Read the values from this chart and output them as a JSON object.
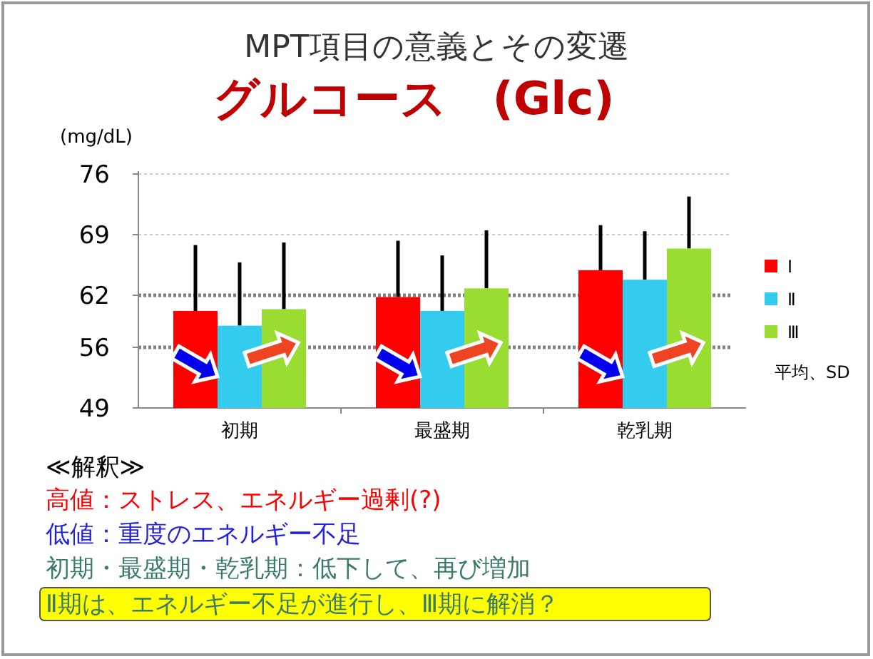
{
  "chart_data": {
    "type": "bar",
    "title": "MPT項目の意義とその変遷",
    "subtitle": "グルコース　(Glc)",
    "ylabel": "(mg/dL)",
    "categories": [
      "初期",
      "最盛期",
      "乾乳期"
    ],
    "series": [
      {
        "name": "Ⅰ",
        "color": "#ff0000",
        "values": [
          60.2,
          61.8,
          64.9
        ],
        "errors": [
          [
            60.2,
            67.8
          ],
          [
            61.8,
            68.3
          ],
          [
            64.9,
            70.1
          ]
        ]
      },
      {
        "name": "Ⅱ",
        "color": "#33ccee",
        "values": [
          58.5,
          60.2,
          63.8
        ],
        "errors": [
          [
            58.5,
            65.8
          ],
          [
            60.2,
            66.6
          ],
          [
            63.8,
            69.4
          ]
        ]
      },
      {
        "name": "Ⅲ",
        "color": "#99dd33",
        "values": [
          60.4,
          62.8,
          67.4
        ],
        "errors": [
          [
            60.4,
            68.1
          ],
          [
            62.8,
            69.5
          ],
          [
            67.4,
            73.4
          ]
        ]
      }
    ],
    "ylim": [
      49,
      76
    ],
    "yticks": [
      49,
      56,
      62,
      69,
      76
    ],
    "legend": "right",
    "ref_lines": [
      {
        "axis": "y",
        "value": 76,
        "color": "#bbbbbb",
        "line_style": "dashed"
      },
      {
        "axis": "y",
        "value": 69,
        "color": "#bbbbbb",
        "line_style": "dashed"
      },
      {
        "axis": "y",
        "value": 62,
        "color": "#808080",
        "line_style": "dotted"
      },
      {
        "axis": "y",
        "value": 56,
        "color": "#808080",
        "line_style": "dotted"
      }
    ],
    "annotations": [
      "平均、SD",
      "≪解釈≫",
      "高値：ストレス、エネルギー過剰(?)",
      "低値：重度のエネルギー不足",
      "初期・最盛期・乾乳期：低下して、再び増加",
      "Ⅱ期は、エネルギー不足が進行し、Ⅲ期に解消？"
    ]
  }
}
